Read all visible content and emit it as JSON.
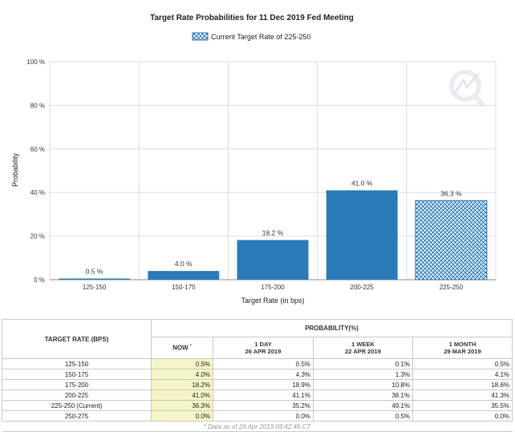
{
  "chart_data": {
    "type": "bar",
    "title": "Target Rate Probabilities for 11 Dec 2019 Fed Meeting",
    "legend": "Current Target Rate of 225-250",
    "legend_position": "top-center",
    "xlabel": "Target Rate (in bps)",
    "ylabel": "Probability",
    "ylim": [
      0,
      100
    ],
    "yticks": [
      "0 %",
      "20 %",
      "40 %",
      "60 %",
      "80 %",
      "100 %"
    ],
    "ytick_values": [
      0,
      20,
      40,
      60,
      80,
      100
    ],
    "grid": true,
    "categories": [
      "125-150",
      "150-175",
      "175-200",
      "200-225",
      "225-250"
    ],
    "values": [
      0.5,
      4.0,
      18.2,
      41.0,
      36.3
    ],
    "value_labels": [
      "0.5 %",
      "4.0 %",
      "18.2 %",
      "41.0 %",
      "36.3 %"
    ],
    "current_index": 4,
    "colors": {
      "bar": "#2b7bba",
      "hatch": "#2b7bba",
      "grid": "#dddddd",
      "axis": "#888888"
    }
  },
  "table": {
    "header_rate": "TARGET RATE (BPS)",
    "header_probability": "PROBABILITY(%)",
    "col_now": "NOW",
    "col_now_mark": "*",
    "col_1day": "1 DAY",
    "col_1day_date": "26 APR 2019",
    "col_1week": "1 WEEK",
    "col_1week_date": "22 APR 2019",
    "col_1month": "1 MONTH",
    "col_1month_date": "29 MAR 2019",
    "rows": [
      {
        "rate": "125-150",
        "now": "0.5%",
        "d1": "0.5%",
        "w1": "0.1%",
        "m1": "0.5%"
      },
      {
        "rate": "150-175",
        "now": "4.0%",
        "d1": "4.3%",
        "w1": "1.3%",
        "m1": "4.1%"
      },
      {
        "rate": "175-200",
        "now": "18.2%",
        "d1": "18.9%",
        "w1": "10.8%",
        "m1": "18.6%"
      },
      {
        "rate": "200-225",
        "now": "41.0%",
        "d1": "41.1%",
        "w1": "38.1%",
        "m1": "41.3%"
      },
      {
        "rate": "225-250 (Current)",
        "now": "36.3%",
        "d1": "35.2%",
        "w1": "49.1%",
        "m1": "35.5%"
      },
      {
        "rate": "250-275",
        "now": "0.0%",
        "d1": "0.0%",
        "w1": "0.5%",
        "m1": "0.0%"
      }
    ],
    "footnote": "* Data as of 29 Apr 2019 09:42:46 CT"
  }
}
